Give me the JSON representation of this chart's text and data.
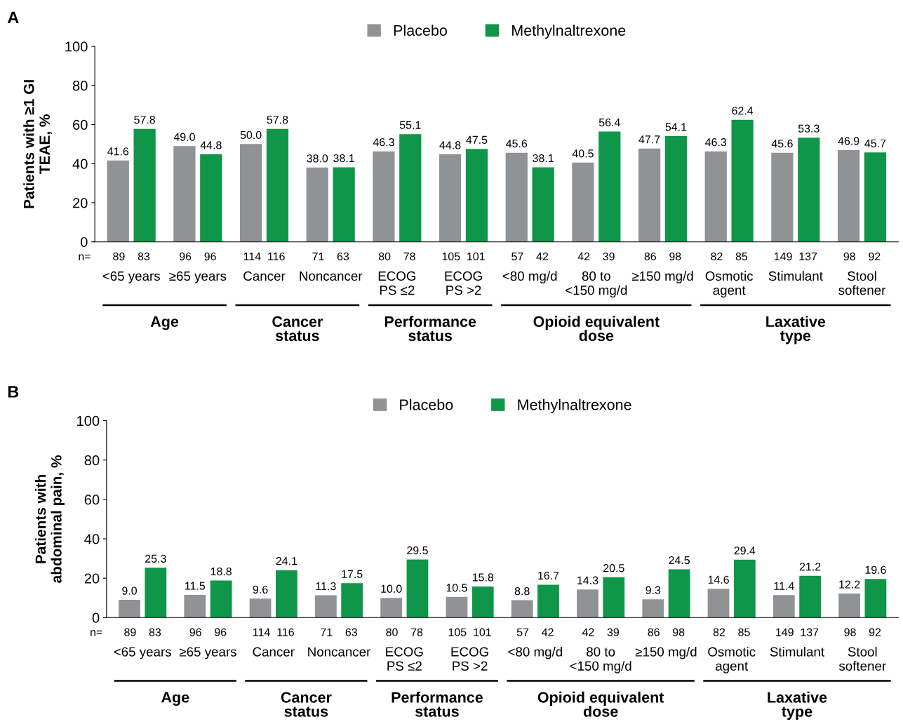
{
  "chart_data": [
    {
      "type": "bar",
      "title": "A",
      "ylabel": "Patients with ≥1 GI\nTEAE, %",
      "categories": [
        "<65 years",
        "≥65 years",
        "Cancer",
        "Noncancer",
        "ECOG\nPS ≤2",
        "ECOG\nPS >2",
        "<80 mg/d",
        "80 to\n<150 mg/d",
        "≥150 mg/d",
        "Osmotic\nagent",
        "Stimulant",
        "Stool\nsoftener"
      ],
      "series": [
        {
          "name": "Placebo",
          "color": "#8f9396",
          "values": [
            41.6,
            49.0,
            50.0,
            38.0,
            46.3,
            44.8,
            45.6,
            40.5,
            47.7,
            46.3,
            45.6,
            46.9
          ],
          "value_labels": [
            "41.6",
            "49.0",
            "50.0",
            "38.0",
            "46.3",
            "44.8",
            "45.6",
            "40.5",
            "47.7",
            "46.3",
            "45.6",
            "46.9"
          ]
        },
        {
          "name": "Methylnaltrexone",
          "color": "#0f9648",
          "values": [
            57.8,
            44.8,
            57.8,
            38.1,
            55.1,
            47.5,
            38.1,
            56.4,
            54.1,
            62.4,
            53.3,
            45.7
          ],
          "value_labels": [
            "57.8",
            "44.8",
            "57.8",
            "38.1",
            "55.1",
            "47.5",
            "38.1",
            "56.4",
            "54.1",
            "62.4",
            "53.3",
            "45.7"
          ]
        }
      ],
      "ylim": [
        0,
        100
      ],
      "yticks": [
        0,
        20,
        40,
        60,
        80,
        100
      ],
      "legend": "top",
      "grid": false,
      "annotations": [
        "n=",
        "89    83",
        "96    96",
        "114  116",
        "71    63",
        "80    78",
        "105  101",
        "57    42",
        "42    39",
        "86    98",
        "82    85",
        "149  137",
        "98    92",
        "Age",
        "Cancer\nstatus",
        "Performance\nstatus",
        "Opioid equivalent\ndose",
        "Laxative\ntype"
      ]
    },
    {
      "type": "bar",
      "title": "B",
      "ylabel": "Patients with\nabdominal pain, %",
      "categories": [
        "<65 years",
        "≥65 years",
        "Cancer",
        "Noncancer",
        "ECOG\nPS ≤2",
        "ECOG\nPS >2",
        "<80 mg/d",
        "80 to\n<150 mg/d",
        "≥150 mg/d",
        "Osmotic\nagent",
        "Stimulant",
        "Stool\nsoftener"
      ],
      "series": [
        {
          "name": "Placebo",
          "color": "#8f9396",
          "values": [
            9.0,
            11.5,
            9.6,
            11.3,
            10.0,
            10.5,
            8.8,
            14.3,
            9.3,
            14.6,
            11.4,
            12.2
          ],
          "value_labels": [
            "9.0",
            "11.5",
            "9.6",
            "11.3",
            "10.0",
            "10.5",
            "8.8",
            "14.3",
            "9.3",
            "14.6",
            "11.4",
            "12.2"
          ]
        },
        {
          "name": "Methylnaltrexone",
          "color": "#0f9648",
          "values": [
            25.3,
            18.8,
            24.1,
            17.5,
            29.5,
            15.8,
            16.7,
            20.5,
            24.5,
            29.4,
            21.2,
            19.6
          ],
          "value_labels": [
            "25.3",
            "18.8",
            "24.1",
            "17.5",
            "29.5",
            "15.8",
            "16.7",
            "20.5",
            "24.5",
            "29.4",
            "21.2",
            "19.6"
          ]
        }
      ],
      "ylim": [
        0,
        100
      ],
      "yticks": [
        0,
        20,
        40,
        60,
        80,
        100
      ],
      "legend": "top",
      "grid": false,
      "annotations": [
        "n=",
        "89    83",
        "96    96",
        "114  116",
        "71    63",
        "80    78",
        "105  101",
        "57    42",
        "42    39",
        "86    98",
        "82    85",
        "149  137",
        "98    92",
        "Age",
        "Cancer\nstatus",
        "Performance\nstatus",
        "Opioid equivalent\ndose",
        "Laxative\ntype"
      ]
    }
  ]
}
